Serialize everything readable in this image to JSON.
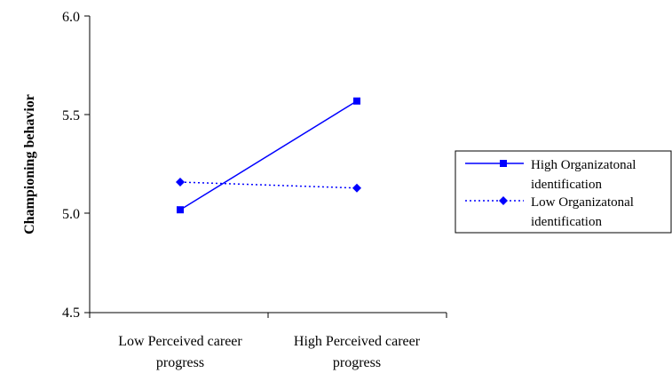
{
  "chart_data": {
    "type": "line",
    "categories": [
      [
        "Low Perceived career",
        "progress"
      ],
      [
        "High Perceived career",
        "progress"
      ]
    ],
    "xlabel": "",
    "ylabel": "Championing behavior",
    "ylim": [
      4.5,
      6.0
    ],
    "yticks": [
      "4.5",
      "5.0",
      "5.5",
      "6.0"
    ],
    "legend_position": "right",
    "series": [
      {
        "name": [
          "High Organizatonal",
          "identification"
        ],
        "values": [
          5.02,
          5.57
        ],
        "marker": "square",
        "line": "solid",
        "color": "#0000ff"
      },
      {
        "name": [
          "Low Organizatonal",
          "identification"
        ],
        "values": [
          5.16,
          5.13
        ],
        "marker": "diamond",
        "line": "dotted",
        "color": "#0000ff"
      }
    ]
  }
}
